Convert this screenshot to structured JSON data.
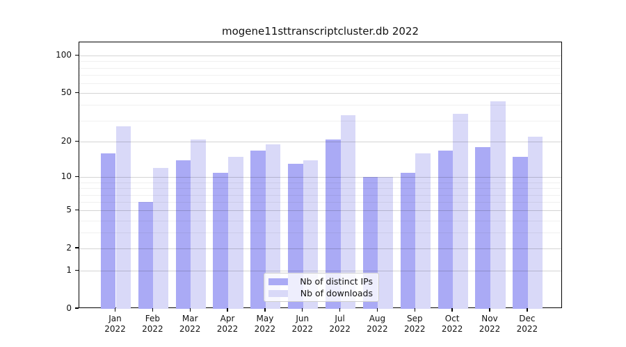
{
  "chart_data": {
    "type": "bar",
    "title": "mogene11sttranscriptcluster.db 2022",
    "year": "2022",
    "categories": [
      "Jan",
      "Feb",
      "Mar",
      "Apr",
      "May",
      "Jun",
      "Jul",
      "Aug",
      "Sep",
      "Oct",
      "Nov",
      "Dec"
    ],
    "series": [
      {
        "name": "Nb of distinct IPs",
        "color": "#aaaaf5",
        "values": [
          16,
          6,
          14,
          11,
          17,
          13,
          21,
          10,
          11,
          17,
          18,
          15
        ]
      },
      {
        "name": "Nb of downloads",
        "color": "#d9d9f8",
        "values": [
          27,
          12,
          21,
          15,
          19,
          14,
          33,
          10,
          16,
          34,
          43,
          22
        ]
      }
    ],
    "y_scale": "log10(1+x)",
    "y_tick_labels": [
      100,
      50,
      20,
      10,
      5,
      2,
      1,
      0
    ],
    "y_major_gridlines": [
      1,
      2,
      5,
      10,
      20,
      50,
      100
    ],
    "y_minor_gridlines": [
      3,
      4,
      6,
      7,
      8,
      9,
      30,
      40,
      60,
      70,
      80,
      90
    ],
    "ylim": [
      0,
      130
    ],
    "grid": "on",
    "legend_position": "lower-center",
    "xlabel": "",
    "ylabel": ""
  }
}
